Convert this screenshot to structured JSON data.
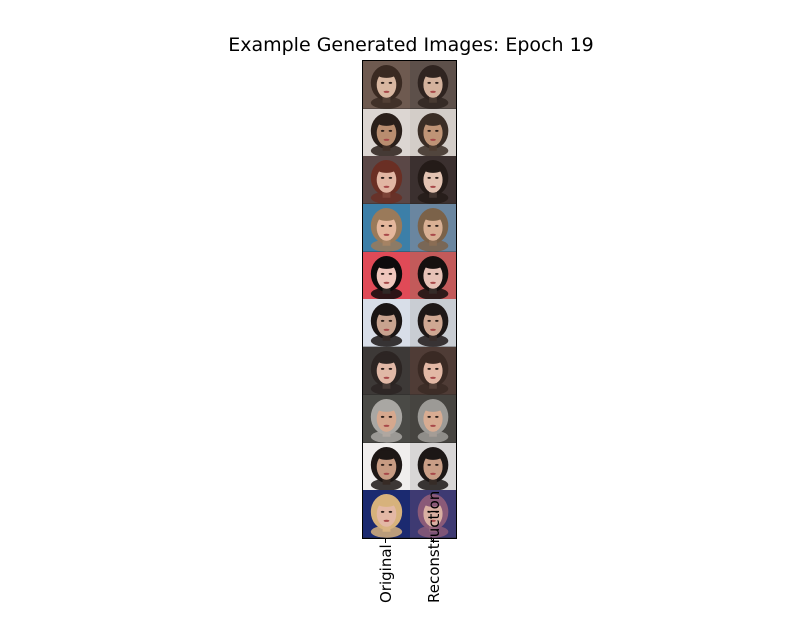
{
  "figure": {
    "title": "Example Generated Images: Epoch 19",
    "x_tick_labels": [
      "Original",
      "Reconstruction"
    ]
  },
  "rows": [
    {
      "original": {
        "bg": "#6e5a50",
        "skin": "#d9b7a1",
        "hair": "#3a2a22"
      },
      "reconstruction": {
        "bg": "#5d504a",
        "skin": "#d4b29d",
        "hair": "#2f2420"
      }
    },
    {
      "original": {
        "bg": "#dcd6d2",
        "skin": "#b98d6f",
        "hair": "#2a1f1a"
      },
      "reconstruction": {
        "bg": "#d3cdc8",
        "skin": "#bf9476",
        "hair": "#3a2d25"
      }
    },
    {
      "original": {
        "bg": "#5a4746",
        "skin": "#e2b6a3",
        "hair": "#6a2f24"
      },
      "reconstruction": {
        "bg": "#3b302f",
        "skin": "#e3c3b2",
        "hair": "#241b18"
      }
    },
    {
      "original": {
        "bg": "#3c7fa8",
        "skin": "#e5b79c",
        "hair": "#9a7a5a"
      },
      "reconstruction": {
        "bg": "#6a86a0",
        "skin": "#d9b094",
        "hair": "#7b6249"
      }
    },
    {
      "original": {
        "bg": "#e04a57",
        "skin": "#f0c7bd",
        "hair": "#0d0b0c"
      },
      "reconstruction": {
        "bg": "#c35a5a",
        "skin": "#e7c2b7",
        "hair": "#15100f"
      }
    },
    {
      "original": {
        "bg": "#d8dee8",
        "skin": "#c8a38f",
        "hair": "#1a1514"
      },
      "reconstruction": {
        "bg": "#c9cdd3",
        "skin": "#cfa893",
        "hair": "#1e1817"
      }
    },
    {
      "original": {
        "bg": "#3d3937",
        "skin": "#e0b8a6",
        "hair": "#2c2523"
      },
      "reconstruction": {
        "bg": "#4f3c36",
        "skin": "#e2b8a5",
        "hair": "#3a2a24"
      }
    },
    {
      "original": {
        "bg": "#4a4a46",
        "skin": "#d6a88e",
        "hair": "#a9a7a3"
      },
      "reconstruction": {
        "bg": "#464440",
        "skin": "#d8ac92",
        "hair": "#9c9a96"
      }
    },
    {
      "original": {
        "bg": "#f0eeed",
        "skin": "#c79b82",
        "hair": "#1d1715"
      },
      "reconstruction": {
        "bg": "#d8d6d6",
        "skin": "#c99e86",
        "hair": "#1c1716"
      }
    },
    {
      "original": {
        "bg": "#1b2a70",
        "skin": "#e3b8a5",
        "hair": "#d7b27c"
      },
      "reconstruction": {
        "bg": "#3e3a72",
        "skin": "#d9b0a2",
        "hair": "#8a5a78"
      }
    }
  ]
}
